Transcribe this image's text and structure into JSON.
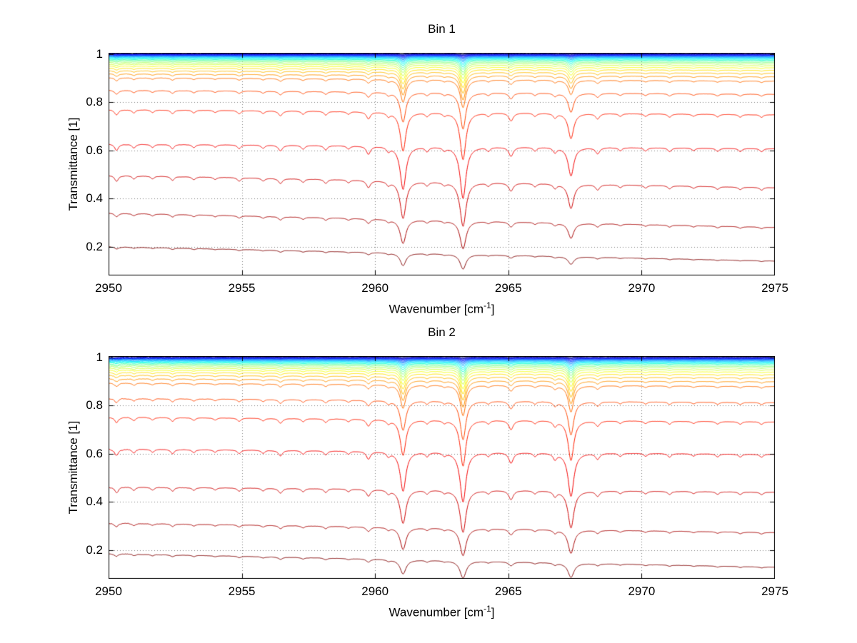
{
  "figure": {
    "background": "#ffffff"
  },
  "chart_data": [
    {
      "type": "line",
      "title": "Bin 1",
      "xlabel": "Wavenumber [cm-1]",
      "xlabel_display": {
        "base": "Wavenumber [cm",
        "sup": "-1",
        "close": "]"
      },
      "ylabel": "Transmittance [1]",
      "xlim": [
        2950,
        2975
      ],
      "ylim": [
        0.08,
        1.005
      ],
      "xticks": [
        2950,
        2955,
        2960,
        2965,
        2970,
        2975
      ],
      "yticks": [
        0.2,
        0.4,
        0.6,
        0.8,
        1
      ],
      "grid": "dotted",
      "grid_color": "#7a7a7a",
      "axis_color": "#000000",
      "legend": "none",
      "box": true,
      "n_series": 27,
      "left_fan": 1.2,
      "absorption_lines_columns": [
        "center_wavenumber",
        "relative_strength",
        "halfwidth"
      ],
      "absorption_lines": [
        [
          2950.3,
          0.1,
          0.09
        ],
        [
          2950.95,
          0.06,
          0.08
        ],
        [
          2951.65,
          0.05,
          0.08
        ],
        [
          2952.4,
          0.07,
          0.08
        ],
        [
          2953.2,
          0.05,
          0.08
        ],
        [
          2954.0,
          0.04,
          0.08
        ],
        [
          2954.9,
          0.06,
          0.08
        ],
        [
          2955.8,
          0.05,
          0.08
        ],
        [
          2956.45,
          0.09,
          0.09
        ],
        [
          2957.3,
          0.06,
          0.08
        ],
        [
          2958.15,
          0.07,
          0.08
        ],
        [
          2959.0,
          0.05,
          0.08
        ],
        [
          2959.75,
          0.13,
          0.09
        ],
        [
          2960.5,
          0.07,
          0.08
        ],
        [
          2961.05,
          0.8,
          0.12
        ],
        [
          2961.95,
          0.07,
          0.08
        ],
        [
          2962.6,
          0.05,
          0.08
        ],
        [
          2963.3,
          1.0,
          0.12
        ],
        [
          2964.25,
          0.06,
          0.08
        ],
        [
          2965.1,
          0.15,
          0.1
        ],
        [
          2966.0,
          0.06,
          0.08
        ],
        [
          2966.75,
          0.08,
          0.08
        ],
        [
          2967.35,
          0.5,
          0.12
        ],
        [
          2968.35,
          0.1,
          0.09
        ],
        [
          2969.2,
          0.05,
          0.08
        ],
        [
          2970.15,
          0.05,
          0.08
        ],
        [
          2971.05,
          0.06,
          0.08
        ],
        [
          2971.95,
          0.04,
          0.08
        ],
        [
          2972.85,
          0.05,
          0.08
        ],
        [
          2973.7,
          0.05,
          0.08
        ],
        [
          2974.5,
          0.05,
          0.08
        ]
      ],
      "series": [
        {
          "color": "#000080",
          "t_left": 1.001,
          "t_right": 1.0005,
          "depth": 0.002,
          "noise": 0.003
        },
        {
          "color": "#0000A7",
          "t_left": 0.9996,
          "t_right": 0.9988,
          "depth": 0.003,
          "noise": 0.0018
        },
        {
          "color": "#0000CE",
          "t_left": 0.9982,
          "t_right": 0.9972,
          "depth": 0.004,
          "noise": 0.0012
        },
        {
          "color": "#0000F5",
          "t_left": 0.9968,
          "t_right": 0.9956,
          "depth": 0.006,
          "noise": 0.0008
        },
        {
          "color": "#001DFF",
          "t_left": 0.9953,
          "t_right": 0.9939,
          "depth": 0.008,
          "noise": 0.0008
        },
        {
          "color": "#0045FF",
          "t_left": 0.9937,
          "t_right": 0.9921,
          "depth": 0.01,
          "noise": 0.0008
        },
        {
          "color": "#006CFF",
          "t_left": 0.9919,
          "t_right": 0.9901,
          "depth": 0.013,
          "noise": 0.0008
        },
        {
          "color": "#0093FF",
          "t_left": 0.9899,
          "t_right": 0.9878,
          "depth": 0.016,
          "noise": 0.0008
        },
        {
          "color": "#00BAFF",
          "t_left": 0.9877,
          "t_right": 0.9852,
          "depth": 0.019,
          "noise": 0.0008
        },
        {
          "color": "#00E2FF",
          "t_left": 0.9851,
          "t_right": 0.9823,
          "depth": 0.023,
          "noise": 0.0008
        },
        {
          "color": "#00FFF5",
          "t_left": 0.9822,
          "t_right": 0.9789,
          "depth": 0.027,
          "noise": 0.0008
        },
        {
          "color": "#00FFCE",
          "t_left": 0.9788,
          "t_right": 0.975,
          "depth": 0.032,
          "noise": 0.0008
        },
        {
          "color": "#58FFA7",
          "t_left": 0.9749,
          "t_right": 0.9705,
          "depth": 0.038,
          "noise": 0.0008
        },
        {
          "color": "#80FF80",
          "t_left": 0.9704,
          "t_right": 0.9652,
          "depth": 0.045,
          "noise": 0.0008
        },
        {
          "color": "#A7FF58",
          "t_left": 0.965,
          "t_right": 0.959,
          "depth": 0.052,
          "noise": 0.0008
        },
        {
          "color": "#CEFF31",
          "t_left": 0.9585,
          "t_right": 0.9516,
          "depth": 0.061,
          "noise": 0.0008
        },
        {
          "color": "#F5FF0A",
          "t_left": 0.9508,
          "t_right": 0.9428,
          "depth": 0.072,
          "noise": 0.0008
        },
        {
          "color": "#FFE200",
          "t_left": 0.9418,
          "t_right": 0.9325,
          "depth": 0.085,
          "noise": 0.0008
        },
        {
          "color": "#FFBA00",
          "t_left": 0.931,
          "t_right": 0.9202,
          "depth": 0.1,
          "noise": 0.0008
        },
        {
          "color": "#FF9300",
          "t_left": 0.918,
          "t_right": 0.9055,
          "depth": 0.118,
          "noise": 0.0008
        },
        {
          "color": "#FF6C00",
          "t_left": 0.902,
          "t_right": 0.8875,
          "depth": 0.14,
          "noise": 0.0008
        },
        {
          "color": "#FF4500",
          "t_left": 0.85,
          "t_right": 0.833,
          "depth": 0.2,
          "noise": 0.0008
        },
        {
          "color": "#FF1D00",
          "t_left": 0.77,
          "t_right": 0.748,
          "depth": 0.3,
          "noise": 0.0008
        },
        {
          "color": "#F50000",
          "t_left": 0.627,
          "t_right": 0.607,
          "depth": 0.43,
          "noise": 0.0008
        },
        {
          "color": "#CE0000",
          "t_left": 0.497,
          "t_right": 0.445,
          "depth": 0.5,
          "noise": 0.0008
        },
        {
          "color": "#A70000",
          "t_left": 0.34,
          "t_right": 0.28,
          "depth": 0.48,
          "noise": 0.0008
        },
        {
          "color": "#800000",
          "t_left": 0.2,
          "t_right": 0.14,
          "depth": 0.45,
          "noise": 0.0008
        }
      ]
    },
    {
      "type": "line",
      "title": "Bin 2",
      "xlabel": "Wavenumber [cm-1]",
      "xlabel_display": {
        "base": "Wavenumber [cm",
        "sup": "-1",
        "close": "]"
      },
      "ylabel": "Transmittance [1]",
      "xlim": [
        2950,
        2975
      ],
      "ylim": [
        0.08,
        1.005
      ],
      "xticks": [
        2950,
        2955,
        2960,
        2965,
        2970,
        2975
      ],
      "yticks": [
        0.2,
        0.4,
        0.6,
        0.8,
        1
      ],
      "grid": "dotted",
      "grid_color": "#7a7a7a",
      "axis_color": "#000000",
      "legend": "none",
      "box": true,
      "n_series": 27,
      "left_fan": 4.0,
      "absorption_lines_columns": [
        "center_wavenumber",
        "relative_strength",
        "halfwidth"
      ],
      "absorption_lines": [
        [
          2950.3,
          0.1,
          0.09
        ],
        [
          2950.95,
          0.06,
          0.08
        ],
        [
          2951.65,
          0.05,
          0.08
        ],
        [
          2952.4,
          0.07,
          0.08
        ],
        [
          2953.2,
          0.05,
          0.08
        ],
        [
          2954.0,
          0.04,
          0.08
        ],
        [
          2954.9,
          0.06,
          0.08
        ],
        [
          2955.8,
          0.05,
          0.08
        ],
        [
          2956.45,
          0.09,
          0.09
        ],
        [
          2957.3,
          0.06,
          0.08
        ],
        [
          2958.15,
          0.07,
          0.08
        ],
        [
          2959.0,
          0.05,
          0.08
        ],
        [
          2959.75,
          0.13,
          0.09
        ],
        [
          2960.5,
          0.07,
          0.08
        ],
        [
          2961.05,
          0.75,
          0.12
        ],
        [
          2961.95,
          0.07,
          0.08
        ],
        [
          2962.6,
          0.05,
          0.08
        ],
        [
          2963.3,
          1.0,
          0.12
        ],
        [
          2964.25,
          0.06,
          0.08
        ],
        [
          2965.1,
          0.18,
          0.1
        ],
        [
          2966.0,
          0.06,
          0.08
        ],
        [
          2966.75,
          0.1,
          0.08
        ],
        [
          2967.35,
          0.85,
          0.12
        ],
        [
          2968.35,
          0.1,
          0.09
        ],
        [
          2969.2,
          0.05,
          0.08
        ],
        [
          2970.15,
          0.05,
          0.08
        ],
        [
          2971.05,
          0.06,
          0.08
        ],
        [
          2971.95,
          0.04,
          0.08
        ],
        [
          2972.85,
          0.05,
          0.08
        ],
        [
          2973.7,
          0.05,
          0.08
        ],
        [
          2974.5,
          0.05,
          0.08
        ]
      ],
      "series": [
        {
          "color": "#000080",
          "t_left": 1.001,
          "t_right": 1.0,
          "depth": 0.002,
          "noise": 0.003
        },
        {
          "color": "#0000A7",
          "t_left": 0.9995,
          "t_right": 0.9985,
          "depth": 0.003,
          "noise": 0.002
        },
        {
          "color": "#0000CE",
          "t_left": 0.998,
          "t_right": 0.9968,
          "depth": 0.004,
          "noise": 0.0015
        },
        {
          "color": "#0000F5",
          "t_left": 0.9965,
          "t_right": 0.9951,
          "depth": 0.006,
          "noise": 0.0012
        },
        {
          "color": "#001DFF",
          "t_left": 0.9949,
          "t_right": 0.9933,
          "depth": 0.008,
          "noise": 0.0008
        },
        {
          "color": "#0045FF",
          "t_left": 0.9931,
          "t_right": 0.9913,
          "depth": 0.011,
          "noise": 0.0008
        },
        {
          "color": "#006CFF",
          "t_left": 0.9911,
          "t_right": 0.9891,
          "depth": 0.014,
          "noise": 0.0008
        },
        {
          "color": "#0093FF",
          "t_left": 0.9889,
          "t_right": 0.9866,
          "depth": 0.017,
          "noise": 0.0008
        },
        {
          "color": "#00BAFF",
          "t_left": 0.9865,
          "t_right": 0.9838,
          "depth": 0.021,
          "noise": 0.0008
        },
        {
          "color": "#00E2FF",
          "t_left": 0.9838,
          "t_right": 0.9807,
          "depth": 0.025,
          "noise": 0.0008
        },
        {
          "color": "#00FFF5",
          "t_left": 0.9807,
          "t_right": 0.9771,
          "depth": 0.03,
          "noise": 0.0008
        },
        {
          "color": "#00FFCE",
          "t_left": 0.9771,
          "t_right": 0.9729,
          "depth": 0.036,
          "noise": 0.0008
        },
        {
          "color": "#58FFA7",
          "t_left": 0.9729,
          "t_right": 0.9681,
          "depth": 0.043,
          "noise": 0.0008
        },
        {
          "color": "#80FF80",
          "t_left": 0.968,
          "t_right": 0.9625,
          "depth": 0.05,
          "noise": 0.0008
        },
        {
          "color": "#A7FF58",
          "t_left": 0.9623,
          "t_right": 0.956,
          "depth": 0.059,
          "noise": 0.0008
        },
        {
          "color": "#CEFF31",
          "t_left": 0.9555,
          "t_right": 0.9482,
          "depth": 0.069,
          "noise": 0.0008
        },
        {
          "color": "#F5FF0A",
          "t_left": 0.9472,
          "t_right": 0.9389,
          "depth": 0.081,
          "noise": 0.0008
        },
        {
          "color": "#FFE200",
          "t_left": 0.9375,
          "t_right": 0.928,
          "depth": 0.095,
          "noise": 0.0008
        },
        {
          "color": "#FFBA00",
          "t_left": 0.9258,
          "t_right": 0.9146,
          "depth": 0.112,
          "noise": 0.0008
        },
        {
          "color": "#FF9300",
          "t_left": 0.9115,
          "t_right": 0.8987,
          "depth": 0.132,
          "noise": 0.0008
        },
        {
          "color": "#FF6C00",
          "t_left": 0.8935,
          "t_right": 0.879,
          "depth": 0.156,
          "noise": 0.0008
        },
        {
          "color": "#FF4500",
          "t_left": 0.83,
          "t_right": 0.812,
          "depth": 0.22,
          "noise": 0.0008
        },
        {
          "color": "#FF1D00",
          "t_left": 0.752,
          "t_right": 0.732,
          "depth": 0.3,
          "noise": 0.0008
        },
        {
          "color": "#F50000",
          "t_left": 0.62,
          "t_right": 0.597,
          "depth": 0.42,
          "noise": 0.0008
        },
        {
          "color": "#CE0000",
          "t_left": 0.462,
          "t_right": 0.44,
          "depth": 0.5,
          "noise": 0.0008
        },
        {
          "color": "#A70000",
          "t_left": 0.312,
          "t_right": 0.272,
          "depth": 0.5,
          "noise": 0.0008
        },
        {
          "color": "#800000",
          "t_left": 0.185,
          "t_right": 0.128,
          "depth": 0.62,
          "noise": 0.0008
        }
      ]
    }
  ]
}
